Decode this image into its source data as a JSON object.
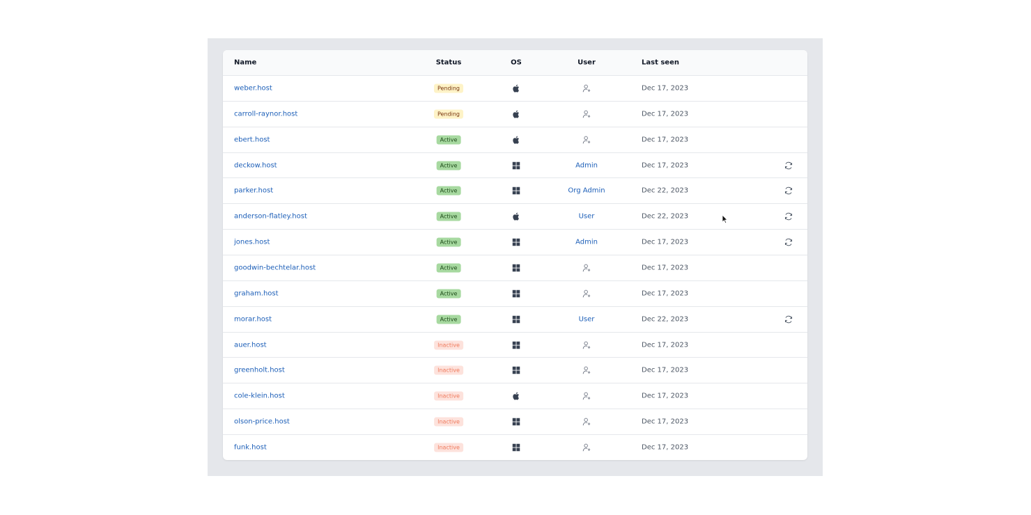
{
  "table": {
    "columns": [
      "Name",
      "Status",
      "OS",
      "User",
      "Last seen"
    ],
    "rows": [
      {
        "name": "weber.host",
        "status": "Pending",
        "last_seen": "Dec 17, 2023"
      },
      {
        "name": "carroll-raynor.host",
        "status": "Pending",
        "last_seen": "Dec 17, 2023"
      },
      {
        "name": "ebert.host",
        "status": "Active",
        "last_seen": "Dec 17, 2023"
      },
      {
        "name": "deckow.host",
        "status": "Active",
        "user": "Admin",
        "last_seen": "Dec 17, 2023"
      },
      {
        "name": "parker.host",
        "status": "Active",
        "user": "Org Admin",
        "last_seen": "Dec 22, 2023"
      },
      {
        "name": "anderson-flatley.host",
        "status": "Active",
        "user": "User",
        "last_seen": "Dec 22, 2023"
      },
      {
        "name": "jones.host",
        "status": "Active",
        "user": "Admin",
        "last_seen": "Dec 17, 2023"
      },
      {
        "name": "goodwin-bechtelar.host",
        "status": "Active",
        "last_seen": "Dec 17, 2023"
      },
      {
        "name": "graham.host",
        "status": "Active",
        "last_seen": "Dec 17, 2023"
      },
      {
        "name": "morar.host",
        "status": "Active",
        "user": "User",
        "last_seen": "Dec 22, 2023"
      },
      {
        "name": "auer.host",
        "status": "Inactive",
        "last_seen": "Dec 17, 2023"
      },
      {
        "name": "greenholt.host",
        "status": "Inactive",
        "last_seen": "Dec 17, 2023"
      },
      {
        "name": "cole-klein.host",
        "status": "Inactive",
        "last_seen": "Dec 17, 2023"
      },
      {
        "name": "olson-price.host",
        "status": "Inactive",
        "last_seen": "Dec 17, 2023"
      },
      {
        "name": "funk.host",
        "status": "Inactive",
        "last_seen": "Dec 17, 2023"
      }
    ]
  }
}
